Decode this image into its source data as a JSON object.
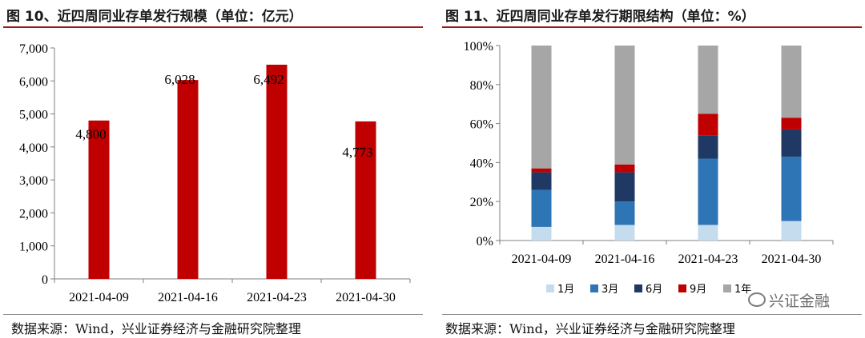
{
  "titles": {
    "left": "图 10、近四周同业存单发行规模（单位：亿元）",
    "right": "图 11、近四周同业存单发行期限结构（单位：%）"
  },
  "sources": {
    "left": "数据来源：Wind，兴业证券经济与金融研究院整理",
    "right": "数据来源：Wind，兴业证券经济与金融研究院整理"
  },
  "watermark": "兴证金融",
  "colors": {
    "bar_red": "#c00000",
    "s1": "#c5dcef",
    "s3": "#2e75b6",
    "s6": "#1f3864",
    "s9": "#c00000",
    "s12": "#a6a6a6"
  },
  "chart_data": [
    {
      "type": "bar",
      "categories": [
        "2021-04-09",
        "2021-04-16",
        "2021-04-23",
        "2021-04-30"
      ],
      "values": [
        4800,
        6028,
        6492,
        4773
      ],
      "value_labels": [
        "4,800",
        "6,028",
        "6,492",
        "4,773"
      ],
      "ylim": [
        0,
        7000
      ],
      "yticks": [
        0,
        1000,
        2000,
        3000,
        4000,
        5000,
        6000,
        7000
      ],
      "ytick_labels": [
        "0",
        "1,000",
        "2,000",
        "3,000",
        "4,000",
        "5,000",
        "6,000",
        "7,000"
      ],
      "grid": false
    },
    {
      "type": "bar",
      "stacked": true,
      "categories": [
        "2021-04-09",
        "2021-04-16",
        "2021-04-23",
        "2021-04-30"
      ],
      "series": [
        {
          "name": "1月",
          "values": [
            7,
            8,
            8,
            10
          ],
          "color_key": "s1"
        },
        {
          "name": "3月",
          "values": [
            19,
            12,
            34,
            33
          ],
          "color_key": "s3"
        },
        {
          "name": "6月",
          "values": [
            9,
            15,
            12,
            14
          ],
          "color_key": "s6"
        },
        {
          "name": "9月",
          "values": [
            2,
            4,
            11,
            6
          ],
          "color_key": "s9"
        },
        {
          "name": "1年",
          "values": [
            63,
            61,
            35,
            37
          ],
          "color_key": "s12"
        }
      ],
      "ylim": [
        0,
        100
      ],
      "yticks": [
        0,
        20,
        40,
        60,
        80,
        100
      ],
      "ytick_labels": [
        "0%",
        "20%",
        "40%",
        "60%",
        "80%",
        "100%"
      ],
      "legend_position": "bottom",
      "grid": false
    }
  ]
}
